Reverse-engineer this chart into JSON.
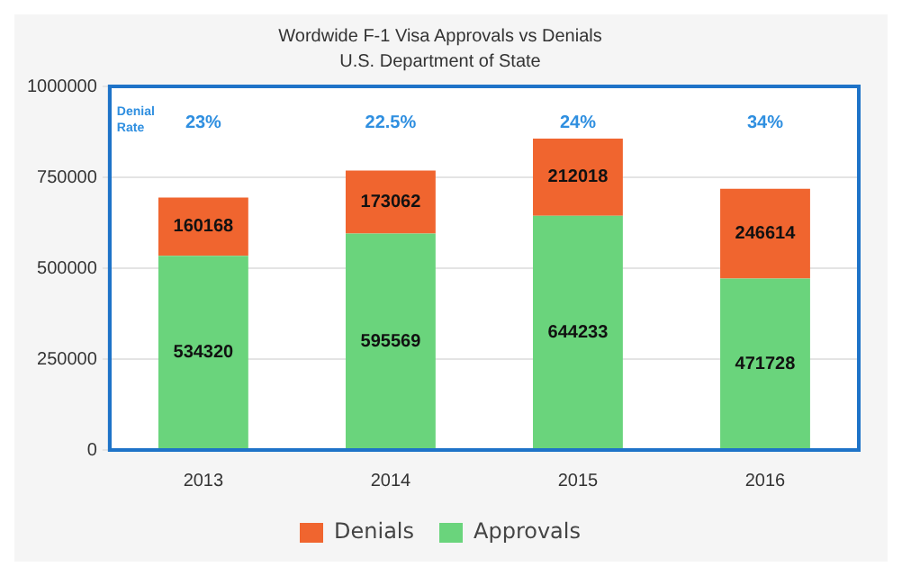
{
  "chart_data": {
    "type": "bar",
    "title": "Wordwide F-1 Visa Approvals vs Denials",
    "subtitle": "U.S. Department of State",
    "categories": [
      "2013",
      "2014",
      "2015",
      "2016"
    ],
    "stacked": true,
    "series": [
      {
        "name": "Approvals",
        "color": "#6ad47c",
        "values": [
          534320,
          595569,
          644233,
          471728
        ]
      },
      {
        "name": "Denials",
        "color": "#f0652f",
        "values": [
          160168,
          173062,
          212018,
          246614
        ]
      }
    ],
    "ylim": [
      0,
      1000000
    ],
    "yticks": [
      0,
      250000,
      500000,
      750000,
      1000000
    ],
    "grid": "y",
    "legend": "bottom",
    "data_labels": true,
    "annotations": [
      "Denial Rate",
      "23%",
      "22.5%",
      "24%",
      "34%"
    ]
  }
}
